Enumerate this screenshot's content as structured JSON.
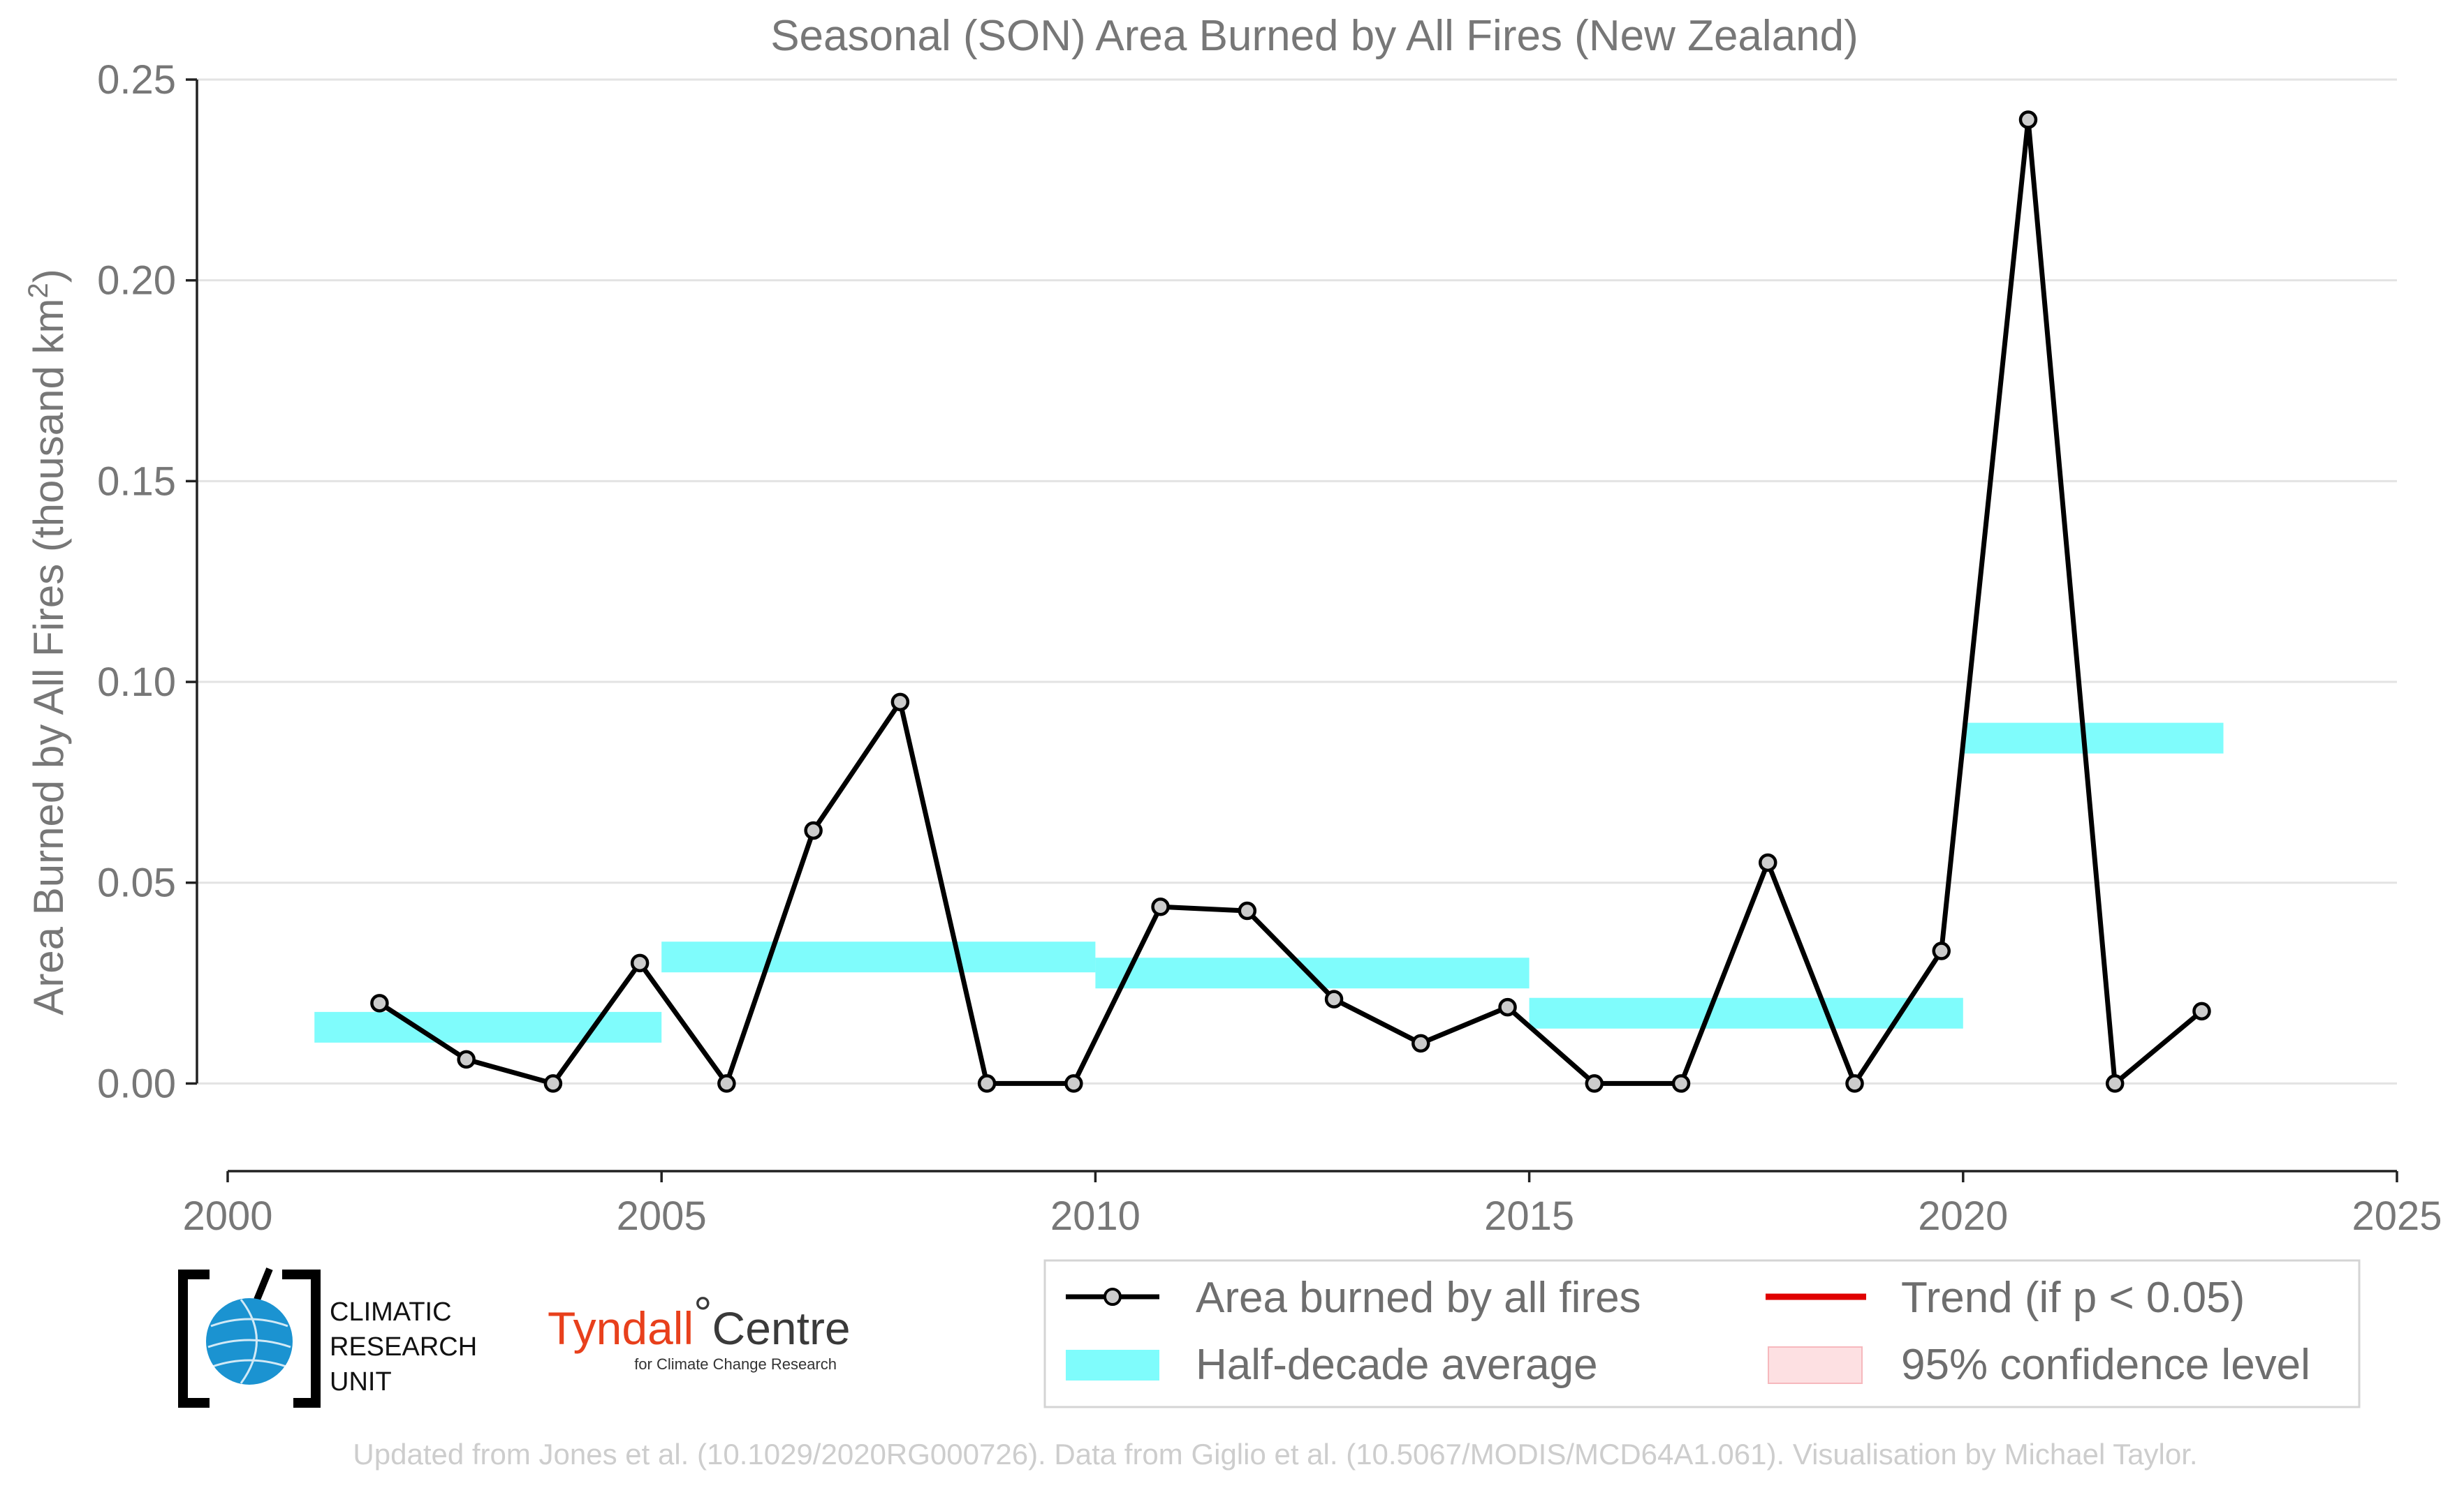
{
  "chart_data": {
    "type": "line",
    "title": "Seasonal (SON) Area Burned by All Fires (New Zealand)",
    "xlabel": "",
    "ylabel": "Area Burned by All Fires (thousand km",
    "ylabel_sup": "2",
    "ylabel_end": ")",
    "xlim": [
      2000,
      2025
    ],
    "ylim": [
      -0.018,
      0.25
    ],
    "x_ticks": [
      2000,
      2005,
      2010,
      2015,
      2020,
      2025
    ],
    "y_ticks": [
      "0.00",
      "0.05",
      "0.10",
      "0.15",
      "0.20",
      "0.25"
    ],
    "grid": "horizontal",
    "series": [
      {
        "name": "Area burned by all fires",
        "color": "#000000",
        "marker_fill": "#cccccc",
        "x": [
          2001.75,
          2002.75,
          2003.75,
          2004.75,
          2005.75,
          2006.75,
          2007.75,
          2008.75,
          2009.75,
          2010.75,
          2011.75,
          2012.75,
          2013.75,
          2014.75,
          2015.75,
          2016.75,
          2017.75,
          2018.75,
          2019.75,
          2020.75,
          2021.75,
          2022.75
        ],
        "y": [
          0.02,
          0.006,
          0.0,
          0.03,
          0.0,
          0.063,
          0.095,
          0.0,
          0.0,
          0.044,
          0.043,
          0.021,
          0.01,
          0.019,
          0.0,
          0.0,
          0.055,
          0.0,
          0.033,
          0.24,
          0.0,
          0.018
        ]
      }
    ],
    "half_decade_average": {
      "name": "Half-decade average",
      "color": "#7ffcfc",
      "segments": [
        {
          "x0": 2001,
          "x1": 2005,
          "y": 0.014
        },
        {
          "x0": 2005,
          "x1": 2010,
          "y": 0.0315
        },
        {
          "x0": 2010,
          "x1": 2015,
          "y": 0.0275
        },
        {
          "x0": 2015,
          "x1": 2020,
          "y": 0.0175
        },
        {
          "x0": 2020,
          "x1": 2023,
          "y": 0.086
        }
      ]
    },
    "legend": {
      "placement": "bottom-right",
      "items": [
        {
          "label": "Area burned by all fires",
          "kind": "line-marker",
          "color": "#000000"
        },
        {
          "label": "Trend (if p < 0.05)",
          "kind": "line",
          "color": "#e00000"
        },
        {
          "label": "Half-decade average",
          "kind": "band",
          "color": "#7ffcfc"
        },
        {
          "label": "95% confidence level",
          "kind": "patch",
          "color": "#fde0e2"
        }
      ]
    }
  },
  "logos": {
    "cru": {
      "line1": "CLIMATIC",
      "line2": "RESEARCH",
      "line3": "UNIT",
      "color": "#1b93d1"
    },
    "tyndall": {
      "name_red": "Tyndall",
      "degree": "°",
      "name_dark": "Centre",
      "subtitle": "for Climate Change Research"
    }
  },
  "footer": "Updated from Jones et al. (10.1029/2020RG000726). Data from Giglio et al. (10.5067/MODIS/MCD64A1.061). Visualisation by Michael Taylor."
}
